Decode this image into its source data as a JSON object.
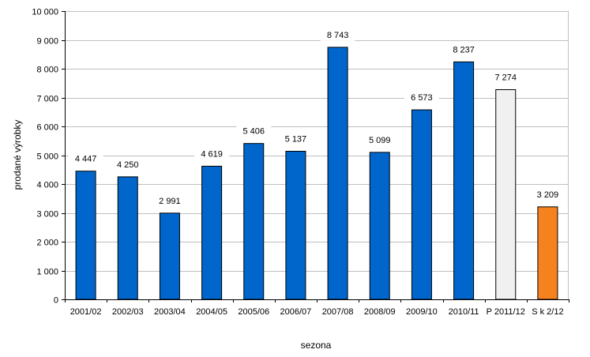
{
  "chart_data": {
    "type": "bar",
    "xlabel": "sezona",
    "ylabel": "prodané výrobky",
    "ylim": [
      0,
      10000
    ],
    "yticks": [
      "0",
      "1 000",
      "2 000",
      "3 000",
      "4 000",
      "5 000",
      "6 000",
      "7 000",
      "8 000",
      "9 000",
      "10 000"
    ],
    "grid": true,
    "categories": [
      "2001/02",
      "2002/03",
      "2003/04",
      "2004/05",
      "2005/06",
      "2006/07",
      "2007/08",
      "2008/09",
      "2009/10",
      "2010/11",
      "P 2011/12",
      "S k 2/12"
    ],
    "values": [
      4447,
      4250,
      2991,
      4619,
      5406,
      5137,
      8743,
      5099,
      6573,
      8237,
      7274,
      3209
    ],
    "data_labels": [
      "4 447",
      "4 250",
      "2 991",
      "4 619",
      "5 406",
      "5 137",
      "8 743",
      "5 099",
      "6 573",
      "8 237",
      "7 274",
      "3 209"
    ],
    "colors": {
      "default": "#0066CC",
      "P 2011/12": "#F0F0F0",
      "S k 2/12": "#F5821F"
    },
    "bar_stroke": "#000000",
    "grid_color": "#BFBFBF"
  }
}
